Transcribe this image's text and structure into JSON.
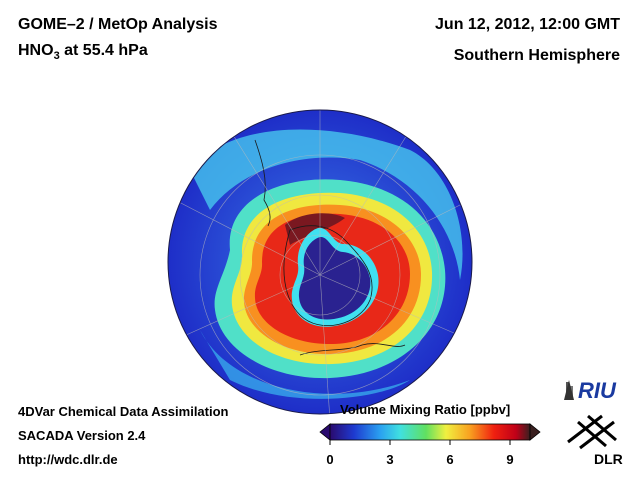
{
  "header": {
    "title_line1": "GOME–2 / MetOp Analysis",
    "species": "HNO",
    "species_sub": "3",
    "level": " at 55.4 hPa",
    "datetime": "Jun 12, 2012, 12:00 GMT",
    "region": "Southern Hemisphere"
  },
  "footer": {
    "line1": "4DVar Chemical Data Assimilation",
    "line2": "SACADA Version 2.4",
    "line3": "http://wdc.dlr.de"
  },
  "colorbar": {
    "title": "Volume Mixing Ratio [ppbv]",
    "ticks": [
      "0",
      "3",
      "6",
      "9"
    ],
    "range": [
      0,
      10
    ],
    "colors": [
      "#2a0a6e",
      "#1e3ad0",
      "#2aa0f0",
      "#40e0e0",
      "#60e060",
      "#f0f040",
      "#f8a020",
      "#f02010",
      "#c00018",
      "#3a2020"
    ]
  },
  "logos": {
    "riu": "RIU",
    "dlr": "DLR"
  },
  "map": {
    "projection": "orthographic polar (south pole centered)",
    "colors": {
      "ocean_low": "#2a4ad8",
      "mid": "#40c8e8",
      "high_ring": "#e82818",
      "vortex_core": "#2a1a80"
    }
  }
}
